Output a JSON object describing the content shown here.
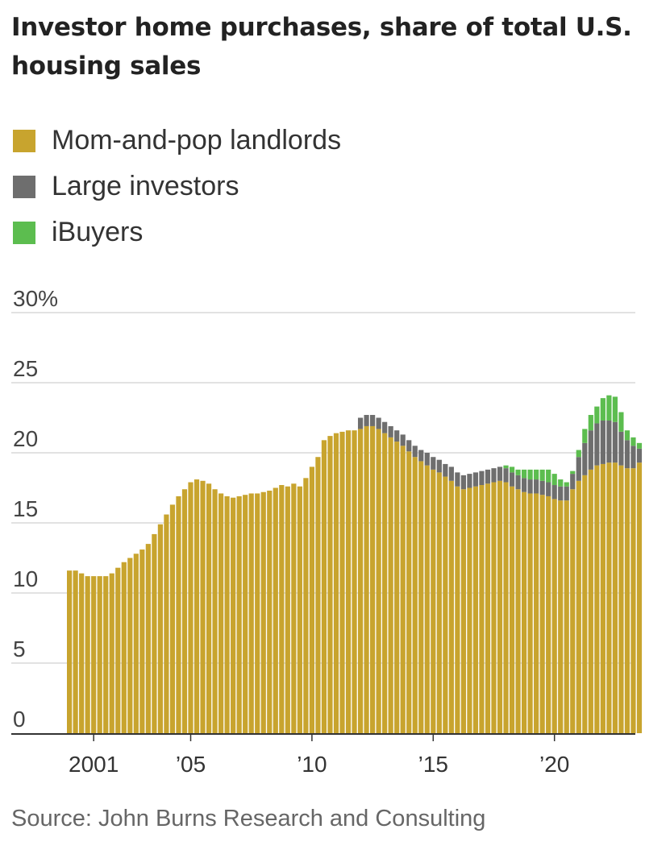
{
  "title": "Investor home purchases, share of total U.S. housing sales",
  "legend": [
    {
      "label": "Mom-and-pop landlords",
      "color": "#c8a42e"
    },
    {
      "label": "Large investors",
      "color": "#6e6e6e"
    },
    {
      "label": "iBuyers",
      "color": "#5cbd4f"
    }
  ],
  "source": "Source: John Burns Research and Consulting",
  "chart_data": {
    "type": "bar",
    "stacked": true,
    "title": "Investor home purchases, share of total U.S. housing sales",
    "xlabel": "",
    "ylabel": "",
    "ylim": [
      0,
      30
    ],
    "yticks": [
      0,
      5,
      10,
      15,
      20,
      25,
      30
    ],
    "ytick_labels": [
      "0",
      "5",
      "10",
      "15",
      "20",
      "25",
      "30%"
    ],
    "xticks": [
      {
        "value": 2001.0,
        "label": "2001"
      },
      {
        "value": 2005.0,
        "label": "’05"
      },
      {
        "value": 2010.0,
        "label": "’10"
      },
      {
        "value": 2015.0,
        "label": "’15"
      },
      {
        "value": 2020.0,
        "label": "’20"
      }
    ],
    "grid": true,
    "legend_position": "top-left",
    "x": [
      2000.0,
      2000.25,
      2000.5,
      2000.75,
      2001.0,
      2001.25,
      2001.5,
      2001.75,
      2002.0,
      2002.25,
      2002.5,
      2002.75,
      2003.0,
      2003.25,
      2003.5,
      2003.75,
      2004.0,
      2004.25,
      2004.5,
      2004.75,
      2005.0,
      2005.25,
      2005.5,
      2005.75,
      2006.0,
      2006.25,
      2006.5,
      2006.75,
      2007.0,
      2007.25,
      2007.5,
      2007.75,
      2008.0,
      2008.25,
      2008.5,
      2008.75,
      2009.0,
      2009.25,
      2009.5,
      2009.75,
      2010.0,
      2010.25,
      2010.5,
      2010.75,
      2011.0,
      2011.25,
      2011.5,
      2011.75,
      2012.0,
      2012.25,
      2012.5,
      2012.75,
      2013.0,
      2013.25,
      2013.5,
      2013.75,
      2014.0,
      2014.25,
      2014.5,
      2014.75,
      2015.0,
      2015.25,
      2015.5,
      2015.75,
      2016.0,
      2016.25,
      2016.5,
      2016.75,
      2017.0,
      2017.25,
      2017.5,
      2017.75,
      2018.0,
      2018.25,
      2018.5,
      2018.75,
      2019.0,
      2019.25,
      2019.5,
      2019.75,
      2020.0,
      2020.25,
      2020.5,
      2020.75,
      2021.0,
      2021.25,
      2021.5,
      2021.75,
      2022.0,
      2022.25,
      2022.5,
      2022.75,
      2023.0,
      2023.25,
      2023.5
    ],
    "series": [
      {
        "name": "Mom-and-pop landlords",
        "color": "#c8a42e",
        "values": [
          11.6,
          11.6,
          11.4,
          11.2,
          11.2,
          11.2,
          11.2,
          11.4,
          11.8,
          12.2,
          12.5,
          12.8,
          13.1,
          13.5,
          14.2,
          14.9,
          15.6,
          16.3,
          16.9,
          17.4,
          17.9,
          18.1,
          18.0,
          17.8,
          17.4,
          17.1,
          16.9,
          16.8,
          16.9,
          17.0,
          17.1,
          17.1,
          17.2,
          17.3,
          17.5,
          17.7,
          17.6,
          17.8,
          17.6,
          18.2,
          19.0,
          19.7,
          20.9,
          21.2,
          21.4,
          21.5,
          21.6,
          21.6,
          21.7,
          21.9,
          21.9,
          21.7,
          21.4,
          21.1,
          20.8,
          20.5,
          20.1,
          19.7,
          19.4,
          19.1,
          18.8,
          18.6,
          18.3,
          18.0,
          17.6,
          17.4,
          17.5,
          17.6,
          17.7,
          17.8,
          17.9,
          18.0,
          17.9,
          17.6,
          17.4,
          17.2,
          17.1,
          17.1,
          17.0,
          16.9,
          16.7,
          16.6,
          16.6,
          17.4,
          18.0,
          18.4,
          18.8,
          19.1,
          19.2,
          19.3,
          19.3,
          19.1,
          18.9,
          18.9,
          19.3
        ]
      },
      {
        "name": "Large investors",
        "color": "#6e6e6e",
        "values": [
          0,
          0,
          0,
          0,
          0,
          0,
          0,
          0,
          0,
          0,
          0,
          0,
          0,
          0,
          0,
          0,
          0,
          0,
          0,
          0,
          0,
          0,
          0,
          0,
          0,
          0,
          0,
          0,
          0,
          0,
          0,
          0,
          0,
          0,
          0,
          0,
          0,
          0,
          0,
          0,
          0,
          0,
          0,
          0,
          0,
          0,
          0,
          0,
          0.8,
          0.8,
          0.8,
          0.8,
          0.8,
          0.8,
          0.8,
          0.8,
          0.8,
          0.8,
          0.8,
          0.9,
          0.9,
          0.9,
          0.9,
          1.0,
          1.0,
          1.0,
          1.0,
          1.0,
          1.0,
          1.0,
          1.0,
          1.0,
          1.0,
          1.0,
          1.0,
          1.0,
          1.0,
          1.0,
          1.0,
          1.0,
          1.0,
          1.0,
          1.0,
          1.1,
          1.7,
          2.3,
          2.8,
          3.0,
          3.1,
          3.0,
          2.9,
          2.4,
          2.0,
          1.6,
          1.0
        ]
      },
      {
        "name": "iBuyers",
        "color": "#5cbd4f",
        "values": [
          0,
          0,
          0,
          0,
          0,
          0,
          0,
          0,
          0,
          0,
          0,
          0,
          0,
          0,
          0,
          0,
          0,
          0,
          0,
          0,
          0,
          0,
          0,
          0,
          0,
          0,
          0,
          0,
          0,
          0,
          0,
          0,
          0,
          0,
          0,
          0,
          0,
          0,
          0,
          0,
          0,
          0,
          0,
          0,
          0,
          0,
          0,
          0,
          0,
          0,
          0,
          0,
          0,
          0,
          0,
          0,
          0,
          0,
          0,
          0,
          0,
          0,
          0,
          0,
          0,
          0,
          0,
          0,
          0,
          0,
          0,
          0,
          0.2,
          0.4,
          0.4,
          0.6,
          0.7,
          0.7,
          0.8,
          0.9,
          0.8,
          0.5,
          0.3,
          0.2,
          0.5,
          1.0,
          1.1,
          1.2,
          1.6,
          1.8,
          1.8,
          1.4,
          0.7,
          0.6,
          0.4
        ]
      }
    ]
  }
}
